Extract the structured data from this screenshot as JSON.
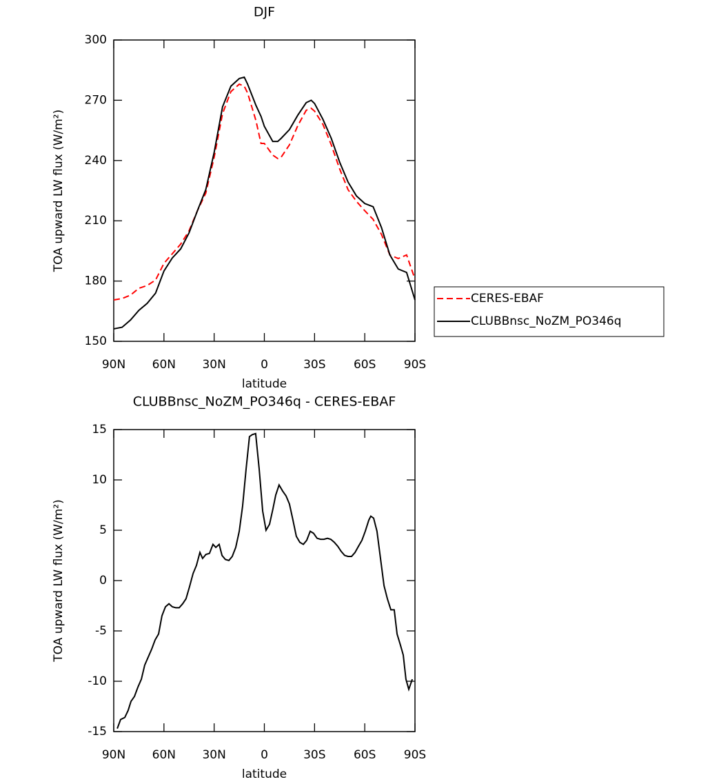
{
  "chart_data": [
    {
      "type": "line",
      "title": "DJF",
      "xlabel": "latitude",
      "ylabel": "TOA upward LW flux (W/m²)",
      "x": [
        90,
        85,
        80,
        75,
        70,
        65,
        60,
        55,
        50,
        45,
        40,
        35,
        30,
        25,
        20,
        15,
        12,
        10,
        5,
        2,
        0,
        -5,
        -8,
        -10,
        -15,
        -20,
        -25,
        -28,
        -30,
        -35,
        -40,
        -45,
        -50,
        -55,
        -60,
        -65,
        -70,
        -75,
        -80,
        -85,
        -90
      ],
      "series": [
        {
          "name": "CERES-EBAF",
          "color": "#ff0000",
          "dash": "dashed",
          "values": [
            170.6,
            171.3,
            173,
            176.4,
            177.8,
            180.5,
            188.8,
            193.6,
            198.4,
            205,
            215,
            223.8,
            241.6,
            263.3,
            274.3,
            278,
            277,
            273.6,
            259.8,
            248.5,
            248.5,
            242.7,
            241,
            241.6,
            247.8,
            257.4,
            265,
            266,
            264.6,
            258,
            247.8,
            235.8,
            225.5,
            219.7,
            215,
            210.7,
            203.2,
            193,
            191.2,
            193,
            181
          ]
        },
        {
          "name": "CLUBBnsc_NoZM_PO346q",
          "color": "#000000",
          "values": [
            156.2,
            157,
            160.6,
            165.4,
            168.9,
            174,
            185,
            191.5,
            196,
            204,
            215,
            225.5,
            244,
            266.7,
            277,
            280.8,
            281.5,
            278,
            267.4,
            262,
            257,
            249.5,
            249.5,
            251,
            255.4,
            262.6,
            268.8,
            270,
            268.4,
            260.5,
            251,
            239.2,
            229.3,
            222.4,
            218.6,
            217,
            206.6,
            193,
            186,
            184.3,
            170.6
          ]
        }
      ],
      "xlim": [
        90,
        -90
      ],
      "xticks": [
        {
          "value": 90,
          "label": "90N"
        },
        {
          "value": 60,
          "label": "60N"
        },
        {
          "value": 30,
          "label": "30N"
        },
        0,
        {
          "value": -30,
          "label": "30S"
        },
        {
          "value": -60,
          "label": "60S"
        },
        {
          "value": -90,
          "label": "90S"
        }
      ],
      "ylim": [
        150,
        300
      ],
      "yticks": [
        150,
        180,
        210,
        240,
        270,
        300
      ],
      "legend": "right"
    },
    {
      "type": "line",
      "title": "CLUBBnsc_NoZM_PO346q - CERES-EBAF",
      "xlabel": "latitude",
      "ylabel": "TOA upward LW flux (W/m²)",
      "x": [
        87.9,
        85.9,
        83.4,
        81.4,
        79.7,
        77.6,
        75.6,
        73.5,
        71.5,
        69.4,
        67.3,
        65.3,
        63.2,
        61.2,
        59.1,
        57.0,
        55.0,
        52.9,
        50.9,
        48.8,
        46.8,
        44.7,
        42.6,
        40.6,
        38.5,
        36.9,
        34.9,
        32.8,
        30.7,
        29.0,
        27.0,
        25.3,
        23.3,
        21.2,
        19.2,
        17.1,
        15.0,
        13.0,
        10.9,
        8.9,
        7.2,
        5.2,
        3.1,
        1.0,
        -1.0,
        -3.1,
        -5.1,
        -6.8,
        -8.8,
        -10.9,
        -13.0,
        -15.0,
        -17.1,
        -19.1,
        -21.2,
        -23.3,
        -25.3,
        -27.4,
        -29.4,
        -31.5,
        -33.6,
        -35.6,
        -37.7,
        -39.7,
        -41.8,
        -43.9,
        -45.9,
        -48.0,
        -50.0,
        -52.1,
        -54.2,
        -56.2,
        -58.3,
        -60.3,
        -62.4,
        -63.6,
        -65.3,
        -67.3,
        -69.4,
        -71.5,
        -73.5,
        -75.6,
        -77.6,
        -79.3,
        -81.3,
        -83.0,
        -84.6,
        -86.3,
        -88.4
      ],
      "values": [
        -14.7,
        -13.8,
        -13.6,
        -12.9,
        -12.0,
        -11.5,
        -10.6,
        -9.8,
        -8.4,
        -7.6,
        -6.8,
        -5.9,
        -5.3,
        -3.5,
        -2.6,
        -2.3,
        -2.6,
        -2.7,
        -2.7,
        -2.3,
        -1.8,
        -0.6,
        0.7,
        1.5,
        2.8,
        2.2,
        2.6,
        2.7,
        3.6,
        3.3,
        3.6,
        2.5,
        2.1,
        2.0,
        2.4,
        3.3,
        4.9,
        7.4,
        11.1,
        14.3,
        14.5,
        14.6,
        11.1,
        6.9,
        5.0,
        5.6,
        7.1,
        8.5,
        9.5,
        8.9,
        8.4,
        7.6,
        6.0,
        4.4,
        3.8,
        3.6,
        4.0,
        4.9,
        4.7,
        4.2,
        4.1,
        4.1,
        4.2,
        4.1,
        3.8,
        3.4,
        2.9,
        2.5,
        2.4,
        2.4,
        2.8,
        3.4,
        4.0,
        4.9,
        6.0,
        6.4,
        6.2,
        4.9,
        2.2,
        -0.5,
        -1.8,
        -2.9,
        -2.9,
        -5.3,
        -6.4,
        -7.4,
        -9.8,
        -10.8,
        -9.8
      ],
      "color": "#000000",
      "xlim": [
        90,
        -90
      ],
      "xticks": [
        {
          "value": 90,
          "label": "90N"
        },
        {
          "value": 60,
          "label": "60N"
        },
        {
          "value": 30,
          "label": "30N"
        },
        0,
        {
          "value": -30,
          "label": "30S"
        },
        {
          "value": -60,
          "label": "60S"
        },
        {
          "value": -90,
          "label": "90S"
        }
      ],
      "ylim": [
        -15,
        15
      ],
      "yticks": [
        -15,
        -10,
        -5,
        0,
        5,
        10,
        15
      ]
    }
  ]
}
